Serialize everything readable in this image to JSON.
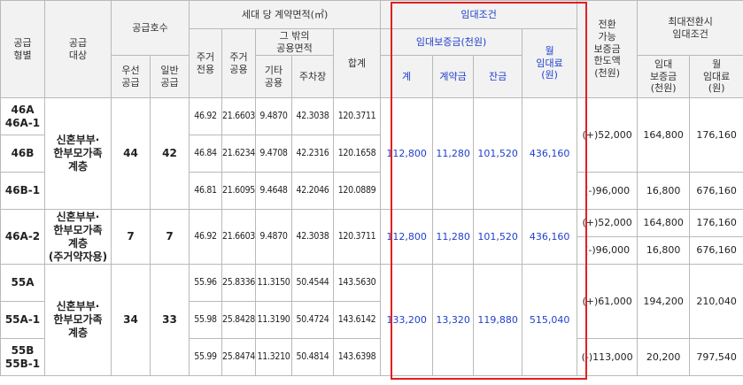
{
  "headers": {
    "supply_type": [
      "공급",
      "형별"
    ],
    "supply_target": [
      "공급",
      "대상"
    ],
    "supply_units": "공급호수",
    "priority": [
      "우선",
      "공급"
    ],
    "general": [
      "일반",
      "공급"
    ],
    "area_group": "세대 당 계약면적(㎡)",
    "res_exclusive": [
      "주거",
      "전용"
    ],
    "res_common": [
      "주거",
      "공용"
    ],
    "other_common": [
      "그 밖의",
      "공용면적"
    ],
    "other_shared": [
      "기타",
      "공용"
    ],
    "parking": "주차장",
    "total": "합계",
    "rent_group": "임대조건",
    "deposit_group": "임대보증금(천원)",
    "deposit_total": "계",
    "deposit_contract": "계약금",
    "deposit_balance": "잔금",
    "monthly_rent": [
      "월",
      "임대료",
      "(원)"
    ],
    "conversion": [
      "전환",
      "가능",
      "보증금",
      "한도액",
      "(천원)"
    ],
    "max_conv_group": [
      "최대전환시",
      "임대조건"
    ],
    "max_deposit": [
      "임대",
      "보증금",
      "(천원)"
    ],
    "max_rent": [
      "월",
      "임대료",
      "(원)"
    ]
  },
  "groups": [
    {
      "target": [
        "신혼부부·",
        "한부모가족",
        "계층"
      ],
      "priority": "44",
      "general": "42",
      "rent": {
        "total": "112,800",
        "contract": "11,280",
        "balance": "101,520",
        "monthly": "436,160"
      },
      "rows": [
        {
          "type": [
            "46A",
            "46A-1"
          ],
          "exclusive": "46.92",
          "res_common": "21.6603",
          "other": "9.4870",
          "parking": "42.3038",
          "total": "120.3711"
        },
        {
          "type": [
            "46B"
          ],
          "exclusive": "46.84",
          "res_common": "21.6234",
          "other": "9.4708",
          "parking": "42.2316",
          "total": "120.1658"
        },
        {
          "type": [
            "46B-1"
          ],
          "exclusive": "46.81",
          "res_common": "21.6095",
          "other": "9.4648",
          "parking": "42.2046",
          "total": "120.0889"
        }
      ],
      "conversions": [
        {
          "limit": "(+)52,000",
          "deposit": "164,800",
          "rent": "176,160"
        },
        {
          "limit": "(-)96,000",
          "deposit": "16,800",
          "rent": "676,160"
        }
      ]
    },
    {
      "target": [
        "신혼부부·",
        "한부모가족",
        "계층",
        "(주거약자용)"
      ],
      "priority": "7",
      "general": "7",
      "rent": {
        "total": "112,800",
        "contract": "11,280",
        "balance": "101,520",
        "monthly": "436,160"
      },
      "rows": [
        {
          "type": [
            "46A-2"
          ],
          "exclusive": "46.92",
          "res_common": "21.6603",
          "other": "9.4870",
          "parking": "42.3038",
          "total": "120.3711"
        }
      ],
      "conversions": [
        {
          "limit": "(+)52,000",
          "deposit": "164,800",
          "rent": "176,160"
        },
        {
          "limit": "(-)96,000",
          "deposit": "16,800",
          "rent": "676,160"
        }
      ]
    },
    {
      "target": [
        "신혼부부·",
        "한부모가족",
        "계층"
      ],
      "priority": "34",
      "general": "33",
      "rent": {
        "total": "133,200",
        "contract": "13,320",
        "balance": "119,880",
        "monthly": "515,040"
      },
      "rows": [
        {
          "type": [
            "55A"
          ],
          "exclusive": "55.96",
          "res_common": "25.8336",
          "other": "11.3150",
          "parking": "50.4544",
          "total": "143.5630"
        },
        {
          "type": [
            "55A-1"
          ],
          "exclusive": "55.98",
          "res_common": "25.8428",
          "other": "11.3190",
          "parking": "50.4724",
          "total": "143.6142"
        },
        {
          "type": [
            "55B",
            "55B-1"
          ],
          "exclusive": "55.99",
          "res_common": "25.8474",
          "other": "11.3210",
          "parking": "50.4814",
          "total": "143.6398"
        }
      ],
      "conversions": [
        {
          "limit": "(+)61,000",
          "deposit": "194,200",
          "rent": "210,040"
        },
        {
          "limit": "(-)113,000",
          "deposit": "20,200",
          "rent": "797,540"
        }
      ]
    }
  ],
  "colors": {
    "accent_border": "#e21f1f",
    "rent_text": "#1f3fcc",
    "header_bg": "#f2f2f2"
  }
}
